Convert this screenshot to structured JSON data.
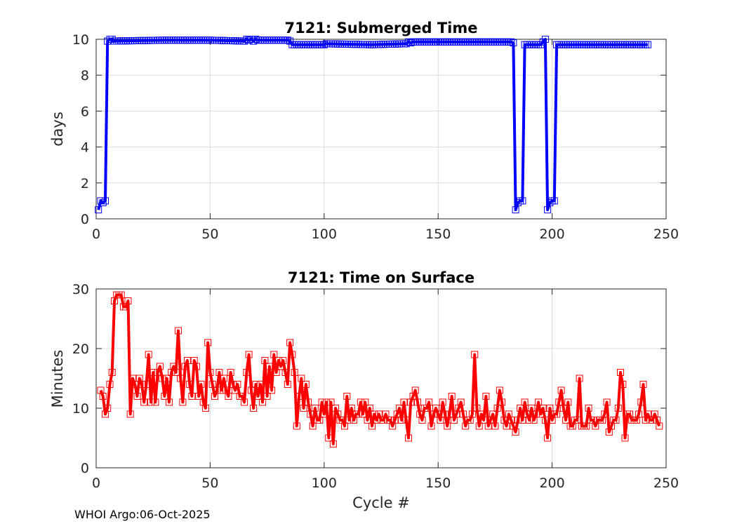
{
  "footer": "WHOI Argo:06-Oct-2025",
  "chart_data": [
    {
      "type": "line",
      "title": "7121: Submerged Time",
      "xlabel": "",
      "ylabel": "days",
      "xlim": [
        0,
        250
      ],
      "ylim": [
        0,
        10
      ],
      "xticks": [
        0,
        50,
        100,
        150,
        200,
        250
      ],
      "yticks": [
        0,
        2,
        4,
        6,
        8,
        10
      ],
      "grid": true,
      "color": "#0000ff",
      "marker": "square",
      "series": [
        {
          "name": "Submerged Time",
          "segments": [
            {
              "x": [
                1,
                2,
                3,
                4,
                5,
                6,
                7
              ],
              "y": [
                0.5,
                1.0,
                0.9,
                1.0,
                9.9,
                10.0,
                10.0
              ]
            },
            {
              "x": [
                7,
                30,
                50,
                65,
                66,
                67,
                68,
                69,
                70,
                71,
                72,
                84
              ],
              "y": [
                9.9,
                9.95,
                9.95,
                9.9,
                10.0,
                9.95,
                10.0,
                9.9,
                10.0,
                9.95,
                9.95,
                9.95
              ]
            },
            {
              "x": [
                85,
                86,
                100,
                101,
                120,
                121,
                135,
                136,
                137,
                138,
                139,
                140,
                182
              ],
              "y": [
                9.9,
                9.7,
                9.7,
                9.75,
                9.7,
                9.7,
                9.75,
                9.75,
                9.85,
                9.8,
                9.85,
                9.85,
                9.85
              ]
            },
            {
              "x": [
                183,
                184,
                185,
                186,
                187,
                188,
                189,
                190,
                195,
                197,
                198,
                199,
                200,
                201,
                202,
                203,
                204,
                242
              ],
              "y": [
                9.8,
                0.5,
                0.9,
                1.0,
                1.0,
                9.7,
                9.7,
                9.7,
                9.7,
                10.0,
                0.5,
                0.9,
                1.0,
                1.0,
                9.7,
                9.7,
                9.7,
                9.7
              ]
            }
          ],
          "marker_x_range": [
            7,
            242
          ],
          "marker_x_step": 1
        }
      ]
    },
    {
      "type": "line",
      "title": "7121: Time on Surface",
      "xlabel": "Cycle #",
      "ylabel": "Minutes",
      "xlim": [
        0,
        250
      ],
      "ylim": [
        0,
        30
      ],
      "xticks": [
        0,
        50,
        100,
        150,
        200,
        250
      ],
      "yticks": [
        0,
        10,
        20,
        30
      ],
      "grid": true,
      "color": "#ff0000",
      "marker": "square",
      "series": [
        {
          "name": "Time on Surface",
          "x_start": 2,
          "values": [
            13,
            12,
            9,
            10,
            14,
            16,
            28,
            29,
            29,
            29,
            27,
            27,
            28,
            9,
            15,
            14,
            12,
            15,
            14,
            11,
            14,
            19,
            11,
            16,
            11,
            16,
            17,
            15,
            12,
            15,
            11,
            16,
            17,
            16,
            23,
            15,
            11,
            17,
            18,
            14,
            12,
            18,
            17,
            12,
            14,
            11,
            10,
            21,
            16,
            14,
            12,
            13,
            16,
            13,
            15,
            13,
            12,
            16,
            14,
            13,
            14,
            12,
            12,
            11,
            16,
            19,
            13,
            10,
            14,
            12,
            14,
            11,
            18,
            12,
            17,
            13,
            19,
            16,
            18,
            17,
            18,
            16,
            14,
            21,
            19,
            16,
            7,
            12,
            15,
            10,
            14,
            11,
            9,
            7,
            10,
            8,
            8,
            11,
            9,
            11,
            5,
            11,
            4,
            10,
            9,
            8,
            8,
            7,
            12,
            8,
            10,
            8,
            9,
            9,
            11,
            9,
            11,
            8,
            10,
            7,
            9,
            8,
            9,
            8,
            8,
            9,
            8,
            8,
            7,
            8,
            9,
            10,
            8,
            11,
            8,
            5,
            11,
            12,
            13,
            11,
            9,
            8,
            10,
            10,
            11,
            7,
            9,
            10,
            9,
            8,
            11,
            9,
            7,
            9,
            12,
            8,
            9,
            10,
            11,
            9,
            7,
            8,
            8,
            9,
            19,
            10,
            7,
            9,
            8,
            12,
            7,
            8,
            9,
            7,
            10,
            13,
            11,
            8,
            7,
            9,
            8,
            7,
            6,
            8,
            10,
            8,
            11,
            9,
            8,
            10,
            8,
            9,
            11,
            9,
            10,
            8,
            5,
            10,
            8,
            9,
            9,
            11,
            13,
            10,
            8,
            11,
            7,
            7,
            8,
            8,
            15,
            7,
            7,
            7,
            10,
            8,
            8,
            7,
            8,
            8,
            8,
            9,
            11,
            6,
            7,
            8,
            8,
            10,
            16,
            14,
            5,
            9,
            9,
            8,
            8,
            8,
            9,
            11,
            14,
            8,
            9,
            8,
            8,
            9,
            8,
            7
          ]
        }
      ]
    }
  ]
}
